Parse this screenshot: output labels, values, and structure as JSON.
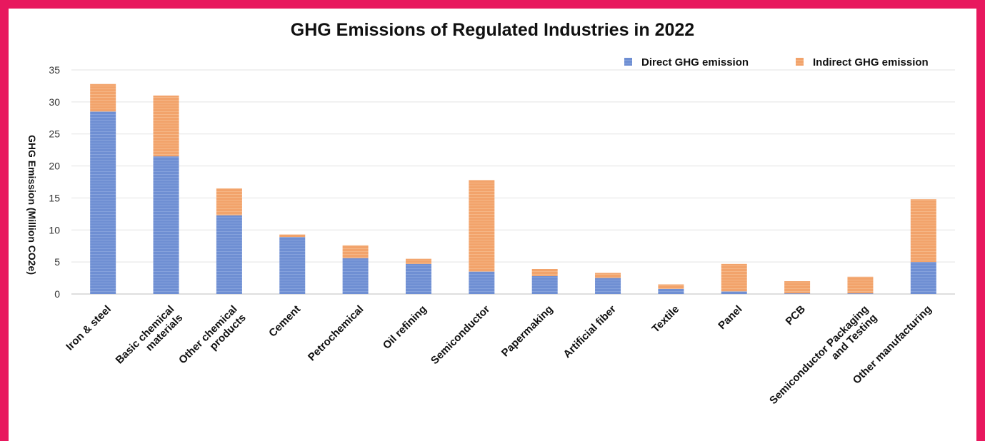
{
  "chart_data": {
    "type": "bar",
    "stacked": true,
    "title": "GHG Emissions of Regulated Industries in 2022",
    "xlabel": "",
    "ylabel": "GHG Emission (Million CO2e)",
    "ylim": [
      0,
      35
    ],
    "yticks": [
      0,
      5,
      10,
      15,
      20,
      25,
      30,
      35
    ],
    "grid": true,
    "legend_position": "top-right",
    "categories": [
      "Iron & steel",
      "Basic chemical materials",
      "Other chemical products",
      "Cement",
      "Petrochemical",
      "Oil refining",
      "Semiconductor",
      "Papermaking",
      "Artificial fiber",
      "Textile",
      "Panel",
      "PCB",
      "Semiconductor Packaging and Testing",
      "Other manufacturing"
    ],
    "category_label_lines": [
      [
        "Iron & steel"
      ],
      [
        "Basic chemical",
        "materials"
      ],
      [
        "Other chemical",
        "products"
      ],
      [
        "Cement"
      ],
      [
        "Petrochemical"
      ],
      [
        "Oil refining"
      ],
      [
        "Semiconductor"
      ],
      [
        "Papermaking"
      ],
      [
        "Artificial fiber"
      ],
      [
        "Textile"
      ],
      [
        "Panel"
      ],
      [
        "PCB"
      ],
      [
        "Semiconductor Packaging",
        "and Testing"
      ],
      [
        "Other manufacturing"
      ]
    ],
    "series": [
      {
        "name": "Direct GHG emission",
        "color": "#6f8fd3",
        "values": [
          28.5,
          21.5,
          12.3,
          8.9,
          5.6,
          4.7,
          3.5,
          2.8,
          2.5,
          0.8,
          0.4,
          0.1,
          0.1,
          5.0
        ]
      },
      {
        "name": "Indirect GHG emission",
        "color": "#f2a36b",
        "values": [
          4.3,
          9.5,
          4.2,
          0.4,
          2.0,
          0.8,
          14.3,
          1.1,
          0.8,
          0.7,
          4.3,
          1.9,
          2.6,
          9.8
        ]
      }
    ]
  }
}
